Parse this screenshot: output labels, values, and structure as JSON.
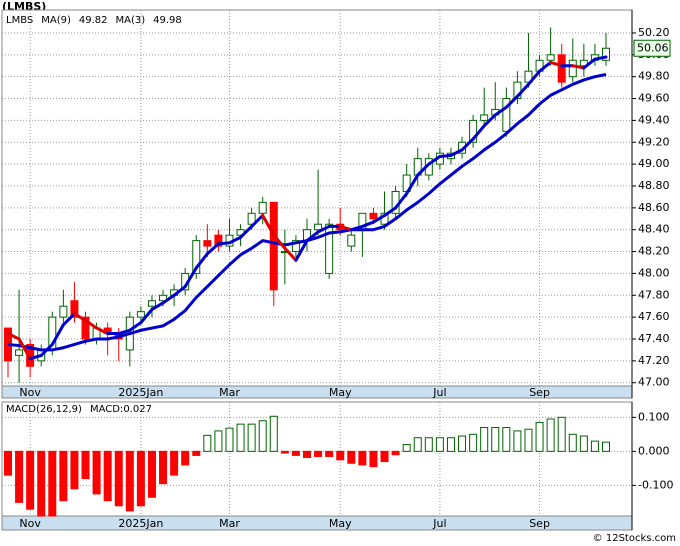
{
  "title": "(LMBS)",
  "footer": "© 12Stocks.com",
  "chart_data": [
    {
      "type": "candlestick",
      "name": "LMBS",
      "name_color": "#008000",
      "categories": [
        null,
        null,
        "Nov",
        null,
        null,
        null,
        null,
        null,
        null,
        null,
        null,
        null,
        "2025Jan",
        null,
        null,
        null,
        null,
        null,
        null,
        null,
        "Mar",
        null,
        null,
        null,
        null,
        null,
        null,
        null,
        null,
        null,
        "May",
        null,
        null,
        null,
        null,
        null,
        null,
        null,
        null,
        "Jul",
        null,
        null,
        null,
        null,
        null,
        null,
        null,
        null,
        "Sep",
        null,
        null,
        null,
        null,
        null,
        null
      ],
      "open": [
        47.5,
        47.25,
        47.35,
        47.2,
        47.3,
        47.6,
        47.75,
        47.6,
        47.4,
        47.5,
        47.45,
        47.3,
        47.6,
        47.7,
        47.75,
        47.8,
        47.85,
        48.0,
        48.3,
        48.35,
        48.25,
        48.35,
        48.45,
        48.55,
        48.65,
        48.2,
        48.2,
        48.3,
        48.4,
        48.0,
        48.45,
        48.25,
        48.4,
        48.55,
        48.45,
        48.55,
        48.75,
        48.9,
        48.9,
        49.0,
        49.05,
        49.1,
        49.2,
        49.4,
        49.45,
        49.3,
        49.6,
        49.75,
        49.85,
        49.95,
        50.0,
        49.8,
        49.9,
        49.95,
        49.95
      ],
      "high": [
        47.5,
        47.85,
        47.4,
        47.35,
        47.65,
        47.85,
        47.92,
        47.65,
        47.55,
        47.55,
        47.5,
        47.65,
        47.7,
        47.8,
        47.85,
        47.9,
        48.05,
        48.35,
        48.45,
        48.4,
        48.5,
        48.45,
        48.6,
        48.7,
        48.65,
        48.4,
        48.35,
        48.5,
        48.95,
        48.5,
        48.6,
        48.4,
        48.55,
        48.6,
        48.75,
        48.8,
        49.0,
        49.15,
        49.1,
        49.15,
        49.15,
        49.25,
        49.45,
        49.7,
        49.75,
        49.7,
        49.85,
        50.2,
        50.0,
        50.25,
        50.1,
        50.15,
        50.1,
        50.1,
        50.2
      ],
      "low": [
        47.05,
        47.0,
        47.05,
        47.15,
        47.25,
        47.55,
        47.55,
        47.35,
        47.35,
        47.25,
        47.2,
        47.15,
        47.55,
        47.6,
        47.7,
        47.7,
        47.8,
        47.95,
        48.15,
        48.2,
        48.2,
        48.25,
        48.4,
        48.45,
        47.7,
        47.9,
        48.15,
        48.2,
        48.35,
        47.95,
        48.35,
        48.2,
        48.15,
        48.45,
        48.4,
        48.5,
        48.7,
        48.8,
        48.85,
        48.95,
        49.0,
        49.05,
        49.15,
        49.35,
        49.4,
        49.25,
        49.55,
        49.7,
        49.8,
        49.9,
        49.7,
        49.75,
        49.8,
        49.9,
        49.9
      ],
      "close": [
        47.2,
        47.3,
        47.15,
        47.3,
        47.6,
        47.7,
        47.6,
        47.4,
        47.5,
        47.45,
        47.4,
        47.6,
        47.65,
        47.75,
        47.8,
        47.85,
        48.0,
        48.3,
        48.25,
        48.25,
        48.35,
        48.4,
        48.55,
        48.65,
        47.85,
        48.2,
        48.3,
        48.4,
        48.45,
        48.45,
        48.4,
        48.35,
        48.55,
        48.5,
        48.55,
        48.75,
        48.9,
        49.05,
        49.05,
        49.1,
        49.1,
        49.2,
        49.4,
        49.45,
        49.5,
        49.6,
        49.75,
        49.85,
        49.95,
        50.0,
        49.75,
        49.95,
        49.95,
        50.0,
        50.06
      ],
      "up_color": "#006400",
      "down_color": "#ff0000",
      "series": [
        {
          "name": "MA(9)",
          "color": "#0000cc",
          "values": [
            47.35,
            47.34,
            47.32,
            47.3,
            47.3,
            47.32,
            47.35,
            47.38,
            47.4,
            47.4,
            47.42,
            47.45,
            47.48,
            47.5,
            47.52,
            47.58,
            47.66,
            47.78,
            47.88,
            47.98,
            48.08,
            48.17,
            48.23,
            48.3,
            48.28,
            48.26,
            48.28,
            48.3,
            48.33,
            48.37,
            48.38,
            48.4,
            48.4,
            48.4,
            48.43,
            48.5,
            48.58,
            48.65,
            48.73,
            48.82,
            48.9,
            48.98,
            49.05,
            49.13,
            49.2,
            49.28,
            49.37,
            49.45,
            49.55,
            49.63,
            49.68,
            49.73,
            49.77,
            49.8,
            49.82
          ]
        },
        {
          "name": "MA(3)",
          "color": "#0000cc",
          "down_color": "#dd0000",
          "values": [
            47.45,
            47.4,
            47.22,
            47.25,
            47.35,
            47.53,
            47.63,
            47.57,
            47.5,
            47.45,
            47.45,
            47.48,
            47.55,
            47.67,
            47.73,
            47.8,
            47.88,
            48.05,
            48.18,
            48.27,
            48.28,
            48.33,
            48.43,
            48.53,
            48.35,
            48.23,
            48.12,
            48.3,
            48.38,
            48.43,
            48.43,
            48.4,
            48.43,
            48.47,
            48.53,
            48.6,
            48.73,
            48.9,
            49.0,
            49.07,
            49.08,
            49.13,
            49.23,
            49.35,
            49.45,
            49.52,
            49.62,
            49.73,
            49.85,
            49.93,
            49.9,
            49.9,
            49.88,
            49.96,
            49.98
          ]
        }
      ],
      "ylim": [
        46.97,
        50.41
      ],
      "yticks": [
        {
          "value": 47.0,
          "label": "47.00"
        },
        {
          "value": 47.2,
          "label": "47.20"
        },
        {
          "value": 47.4,
          "label": "47.40"
        },
        {
          "value": 47.6,
          "label": "47.60"
        },
        {
          "value": 47.8,
          "label": "47.80"
        },
        {
          "value": 48.0,
          "label": "48.00"
        },
        {
          "value": 48.2,
          "label": "48.20"
        },
        {
          "value": 48.4,
          "label": "48.40"
        },
        {
          "value": 48.6,
          "label": "48.60"
        },
        {
          "value": 48.8,
          "label": "48.80"
        },
        {
          "value": 49.0,
          "label": "49.00"
        },
        {
          "value": 49.2,
          "label": "49.20"
        },
        {
          "value": 49.4,
          "label": "49.40"
        },
        {
          "value": 49.6,
          "label": "49.60"
        },
        {
          "value": 49.8,
          "label": "49.80"
        },
        {
          "value": 50.0,
          "label": "50.00"
        },
        {
          "value": 50.2,
          "label": "50.20"
        }
      ],
      "grid": true
    },
    {
      "type": "bar",
      "title": "MACD(26,12,9)",
      "value_prefix": "MACD:",
      "categories": [
        null,
        null,
        "Nov",
        null,
        null,
        null,
        null,
        null,
        null,
        null,
        null,
        null,
        "2025Jan",
        null,
        null,
        null,
        null,
        null,
        null,
        null,
        "Mar",
        null,
        null,
        null,
        null,
        null,
        null,
        null,
        null,
        null,
        "May",
        null,
        null,
        null,
        null,
        null,
        null,
        null,
        null,
        "Jul",
        null,
        null,
        null,
        null,
        null,
        null,
        null,
        null,
        "Sep",
        null,
        null,
        null,
        null,
        null,
        null
      ],
      "values": [
        -0.07,
        -0.15,
        -0.17,
        -0.19,
        -0.19,
        -0.145,
        -0.11,
        -0.08,
        -0.125,
        -0.145,
        -0.16,
        -0.175,
        -0.16,
        -0.135,
        -0.095,
        -0.07,
        -0.04,
        -0.012,
        0.047,
        0.06,
        0.068,
        0.08,
        0.08,
        0.09,
        0.103,
        -0.005,
        -0.012,
        -0.018,
        -0.015,
        -0.015,
        -0.025,
        -0.035,
        -0.04,
        -0.045,
        -0.03,
        -0.01,
        0.02,
        0.04,
        0.04,
        0.04,
        0.04,
        0.045,
        0.05,
        0.07,
        0.07,
        0.07,
        0.06,
        0.065,
        0.085,
        0.095,
        0.1,
        0.05,
        0.045,
        0.03,
        0.027
      ],
      "up_color": "#006400",
      "down_color": "#ff0000",
      "ylim": [
        -0.19,
        0.145
      ],
      "yticks": [
        {
          "value": -0.1,
          "label": "-0.100"
        },
        {
          "value": 0,
          "label": "0.000"
        },
        {
          "value": 0.1,
          "label": "0.100"
        }
      ],
      "grid": true
    }
  ]
}
